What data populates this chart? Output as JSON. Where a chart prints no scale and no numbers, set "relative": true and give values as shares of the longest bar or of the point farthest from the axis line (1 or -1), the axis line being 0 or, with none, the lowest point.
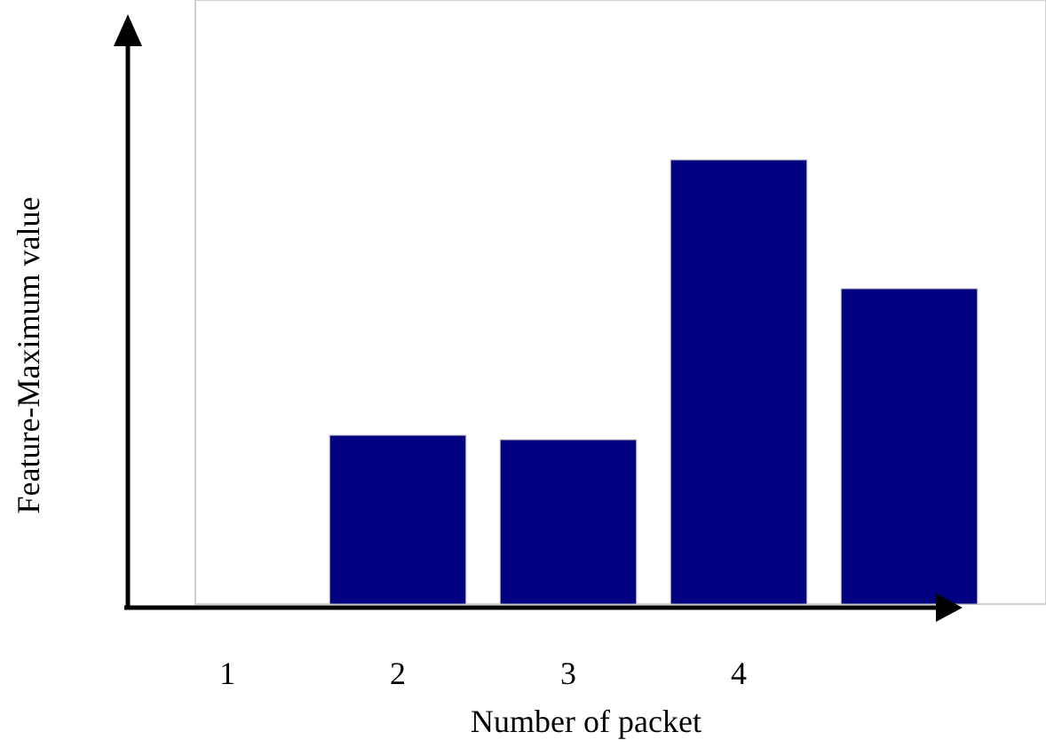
{
  "chart_data": {
    "type": "bar",
    "relative": true,
    "xlabel": "Number of packet",
    "ylabel": "Feature-Maximum value",
    "categories": [
      "1",
      "2",
      "3",
      "4",
      null
    ],
    "values": [
      0,
      0.38,
      0.37,
      1,
      0.71
    ],
    "color": "#000080"
  }
}
